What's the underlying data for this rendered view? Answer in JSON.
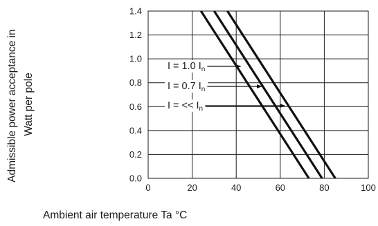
{
  "chart_data": {
    "type": "line",
    "xlabel": "Ambient air temperature Ta °C",
    "ylabel": [
      "Admissible power acceptance in",
      "Watt per pole"
    ],
    "xlim": [
      0,
      100
    ],
    "ylim": [
      0,
      1.4
    ],
    "x_ticks": [
      "0",
      "20",
      "40",
      "60",
      "80",
      "100"
    ],
    "y_ticks": [
      "0.0",
      "0.2",
      "0.4",
      "0.6",
      "0.8",
      "1.0",
      "1.2",
      "1.4"
    ],
    "grid": true,
    "colors": {
      "line": "#111111",
      "grid": "#1a1a1a",
      "background": "#ffffff"
    },
    "series": [
      {
        "label_prefix": "I = 1.0 I",
        "label_sub": "n",
        "x": [
          24,
          73
        ],
        "y": [
          1.4,
          0.0
        ],
        "arrow_to": [
          42,
          0.97
        ]
      },
      {
        "label_prefix": "I = 0.7 I",
        "label_sub": "n",
        "x": [
          30,
          79
        ],
        "y": [
          1.4,
          0.0
        ],
        "arrow_to": [
          51.5,
          0.77
        ]
      },
      {
        "label_prefix": "I = << I",
        "label_sub": "n",
        "x": [
          36,
          85
        ],
        "y": [
          1.4,
          0.0
        ],
        "arrow_to": [
          62,
          0.58
        ]
      }
    ]
  }
}
